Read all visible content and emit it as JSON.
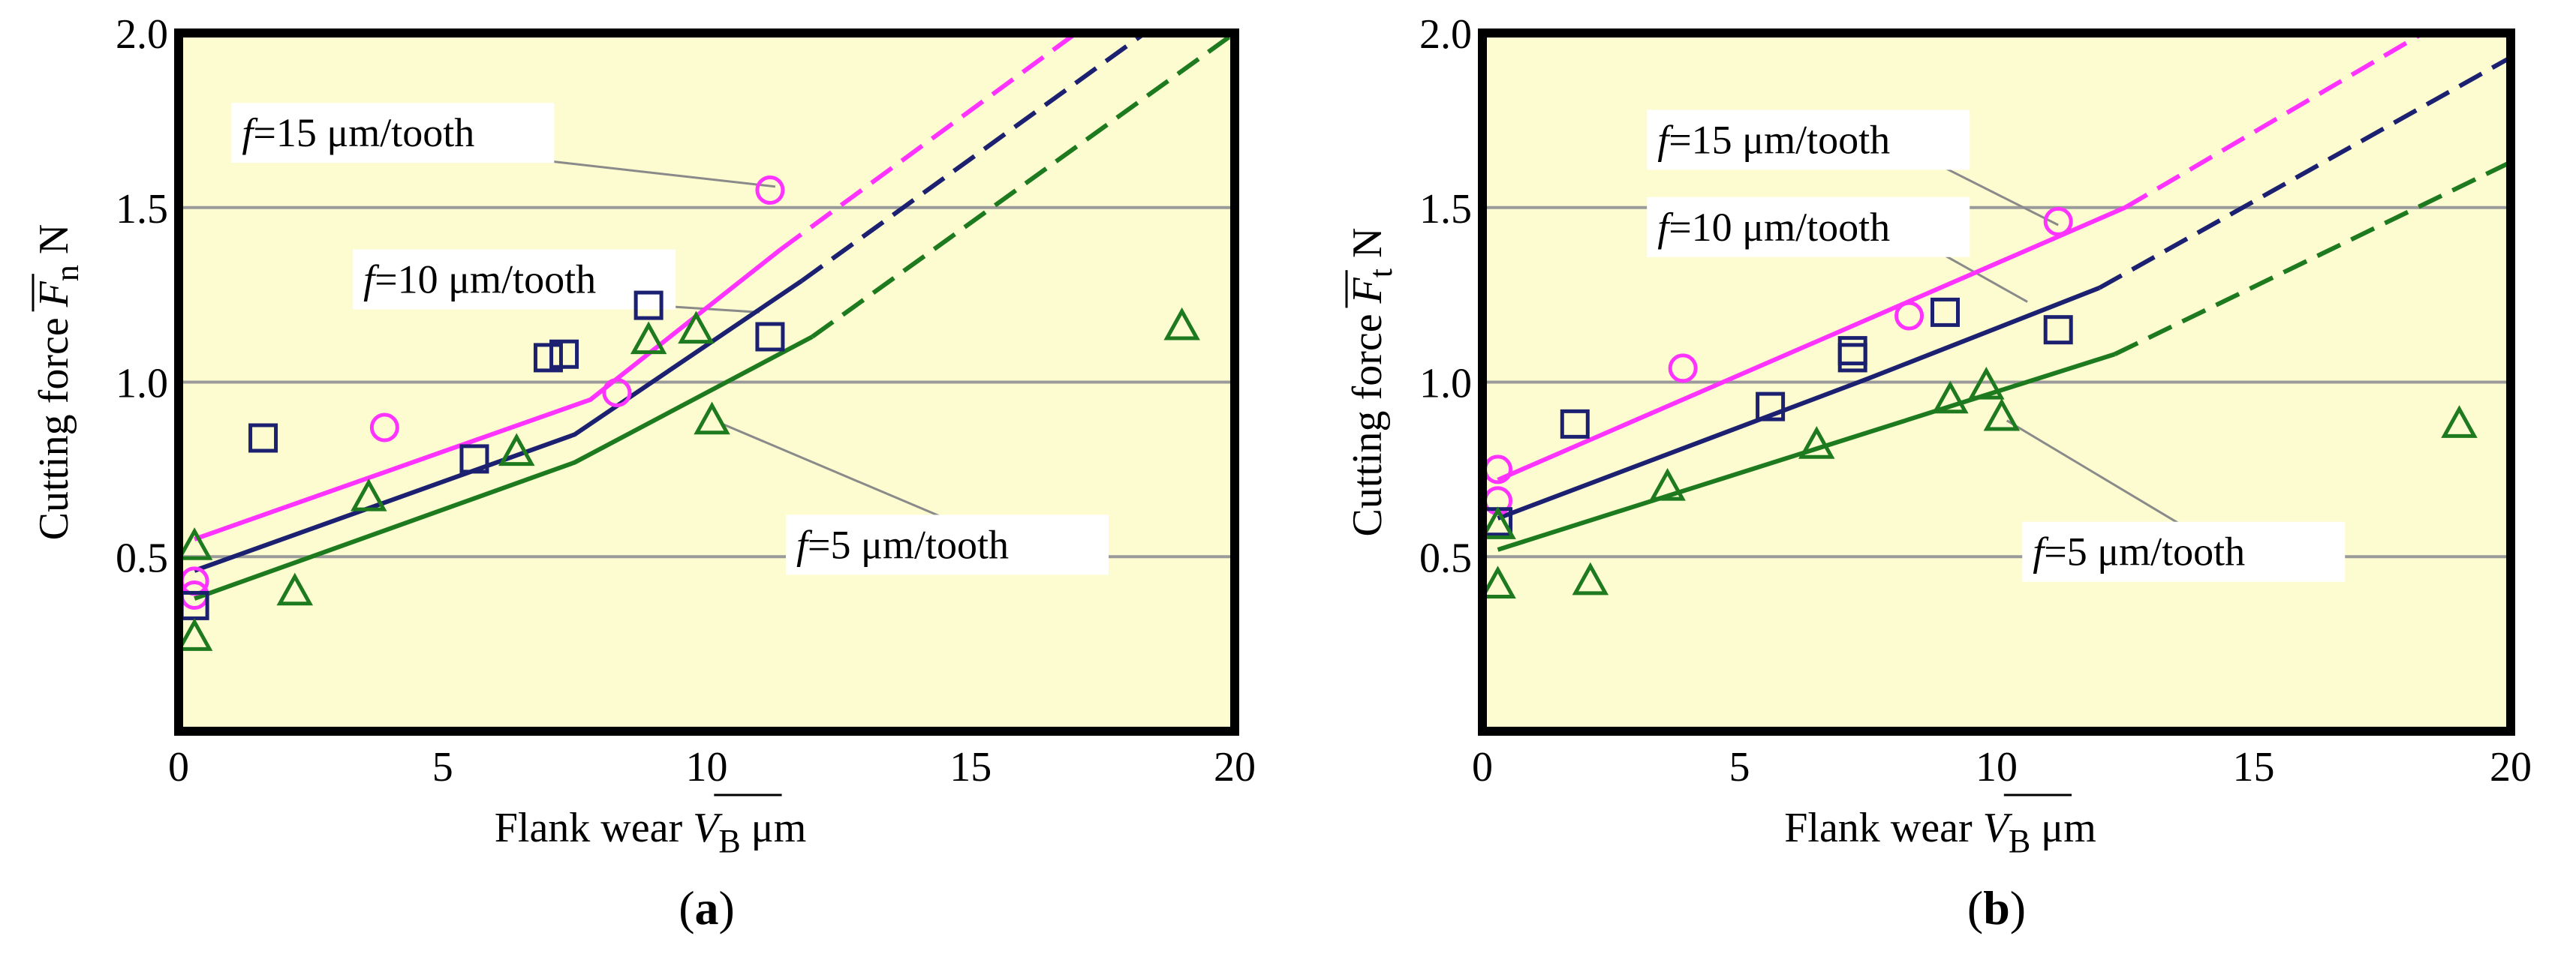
{
  "chart_data": [
    {
      "type": "scatter",
      "panel_label": "(a)",
      "panel_letter": "a",
      "xlabel": "Flank wear",
      "x_symbol": "V",
      "x_sub": "B",
      "x_unit": "μm",
      "ylabel": "Cutting force",
      "y_symbol": "F",
      "y_sub": "n",
      "y_unit": "N",
      "xlim": [
        0,
        20
      ],
      "ylim": [
        0,
        2.0
      ],
      "xticks": [
        0,
        5,
        10,
        15,
        20
      ],
      "xtick_labels": [
        "0",
        "5",
        "10",
        "15",
        "20"
      ],
      "yticks": [
        0.5,
        1.0,
        1.5,
        2.0
      ],
      "ytick_labels": [
        "0.5",
        "1.0",
        "1.5",
        "2.0"
      ],
      "grid": "horizontal",
      "background": "#fdfbd0",
      "series": [
        {
          "name": "f=15 μm/tooth",
          "marker": "circle",
          "color": "#ff33ff",
          "points": [
            [
              0.3,
              0.43
            ],
            [
              0.3,
              0.39
            ],
            [
              3.9,
              0.87
            ],
            [
              8.3,
              0.97
            ],
            [
              11.2,
              1.55
            ]
          ],
          "fit_solid": [
            [
              0.3,
              0.55
            ],
            [
              7.8,
              0.95
            ],
            [
              11.4,
              1.38
            ]
          ],
          "fit_dashed": [
            [
              11.4,
              1.38
            ],
            [
              17.0,
              2.0
            ]
          ]
        },
        {
          "name": "f=10 μm/tooth",
          "marker": "square",
          "color": "#1c2070",
          "points": [
            [
              0.3,
              0.36
            ],
            [
              1.6,
              0.84
            ],
            [
              5.6,
              0.78
            ],
            [
              7.0,
              1.07
            ],
            [
              7.3,
              1.08
            ],
            [
              8.9,
              1.22
            ],
            [
              11.2,
              1.13
            ]
          ],
          "fit_solid": [
            [
              0.3,
              0.46
            ],
            [
              7.5,
              0.85
            ],
            [
              11.8,
              1.29
            ]
          ],
          "fit_dashed": [
            [
              11.8,
              1.29
            ],
            [
              18.3,
              2.0
            ]
          ]
        },
        {
          "name": "f=5 μm/tooth",
          "marker": "triangle",
          "color": "#1e7a1e",
          "points": [
            [
              0.3,
              0.53
            ],
            [
              0.3,
              0.27
            ],
            [
              2.2,
              0.4
            ],
            [
              3.6,
              0.67
            ],
            [
              6.4,
              0.8
            ],
            [
              8.9,
              1.12
            ],
            [
              9.8,
              1.15
            ],
            [
              10.1,
              0.89
            ],
            [
              19.0,
              1.16
            ]
          ],
          "fit_solid": [
            [
              0.3,
              0.38
            ],
            [
              7.5,
              0.77
            ],
            [
              12.0,
              1.13
            ]
          ],
          "fit_dashed": [
            [
              12.0,
              1.13
            ],
            [
              20.0,
              2.0
            ]
          ]
        }
      ],
      "annotations": [
        {
          "text": "f=15 μm/tooth",
          "italic": "f",
          "rest": "=15 μm/tooth",
          "series": 0,
          "box_at": [
            1.0,
            1.8
          ],
          "pointer_to": [
            11.3,
            1.56
          ]
        },
        {
          "text": "f=10 μm/tooth",
          "italic": "f",
          "rest": "=10 μm/tooth",
          "series": 1,
          "box_at": [
            3.3,
            1.38
          ],
          "pointer_to": [
            11.0,
            1.2
          ]
        },
        {
          "text": "f=5 μm/tooth",
          "italic": "f",
          "rest": "=5 μm/tooth",
          "series": 2,
          "box_at": [
            11.5,
            0.62
          ],
          "pointer_to": [
            10.3,
            0.88
          ]
        }
      ]
    },
    {
      "type": "scatter",
      "panel_label": "(b)",
      "panel_letter": "b",
      "xlabel": "Flank wear",
      "x_symbol": "V",
      "x_sub": "B",
      "x_unit": "μm",
      "ylabel": "Cutting force",
      "y_symbol": "F",
      "y_sub": "t",
      "y_unit": "N",
      "xlim": [
        0,
        20
      ],
      "ylim": [
        0,
        2.0
      ],
      "xticks": [
        0,
        5,
        10,
        15,
        20
      ],
      "xtick_labels": [
        "0",
        "5",
        "10",
        "15",
        "20"
      ],
      "yticks": [
        0.5,
        1.0,
        1.5,
        2.0
      ],
      "ytick_labels": [
        "0.5",
        "1.0",
        "1.5",
        "2.0"
      ],
      "grid": "horizontal",
      "background": "#fdfbd0",
      "series": [
        {
          "name": "f=15 μm/tooth",
          "marker": "circle",
          "color": "#ff33ff",
          "points": [
            [
              0.3,
              0.75
            ],
            [
              0.3,
              0.66
            ],
            [
              3.9,
              1.04
            ],
            [
              8.3,
              1.19
            ],
            [
              11.2,
              1.46
            ]
          ],
          "fit_solid": [
            [
              0.3,
              0.72
            ],
            [
              12.5,
              1.5
            ]
          ],
          "fit_dashed": [
            [
              12.5,
              1.5
            ],
            [
              18.3,
              2.0
            ]
          ]
        },
        {
          "name": "f=10 μm/tooth",
          "marker": "square",
          "color": "#1c2070",
          "points": [
            [
              0.3,
              0.6
            ],
            [
              1.8,
              0.88
            ],
            [
              5.6,
              0.93
            ],
            [
              7.2,
              1.07
            ],
            [
              7.2,
              1.09
            ],
            [
              9.0,
              1.2
            ],
            [
              11.2,
              1.15
            ]
          ],
          "fit_solid": [
            [
              0.3,
              0.61
            ],
            [
              7.5,
              1.01
            ],
            [
              12.0,
              1.27
            ]
          ],
          "fit_dashed": [
            [
              12.0,
              1.27
            ],
            [
              20.0,
              1.93
            ]
          ]
        },
        {
          "name": "f=5 μm/tooth",
          "marker": "triangle",
          "color": "#1e7a1e",
          "points": [
            [
              0.3,
              0.59
            ],
            [
              0.3,
              0.42
            ],
            [
              2.1,
              0.43
            ],
            [
              3.6,
              0.7
            ],
            [
              6.5,
              0.82
            ],
            [
              9.1,
              0.95
            ],
            [
              9.8,
              0.99
            ],
            [
              10.1,
              0.9
            ],
            [
              19.0,
              0.88
            ]
          ],
          "fit_solid": [
            [
              0.3,
              0.52
            ],
            [
              12.3,
              1.08
            ]
          ],
          "fit_dashed": [
            [
              12.3,
              1.08
            ],
            [
              20.0,
              1.63
            ]
          ]
        }
      ],
      "annotations": [
        {
          "text": "f=15 μm/tooth",
          "italic": "f",
          "rest": "=15 μm/tooth",
          "series": 0,
          "box_at": [
            3.2,
            1.78
          ],
          "pointer_to": [
            11.2,
            1.45
          ]
        },
        {
          "text": "f=10 μm/tooth",
          "italic": "f",
          "rest": "=10 μm/tooth",
          "series": 1,
          "box_at": [
            3.2,
            1.53
          ],
          "pointer_to": [
            10.6,
            1.23
          ]
        },
        {
          "text": "f=5 μm/tooth",
          "italic": "f",
          "rest": "=5 μm/tooth",
          "series": 2,
          "box_at": [
            10.5,
            0.6
          ],
          "pointer_to": [
            10.2,
            0.89
          ]
        }
      ]
    }
  ]
}
